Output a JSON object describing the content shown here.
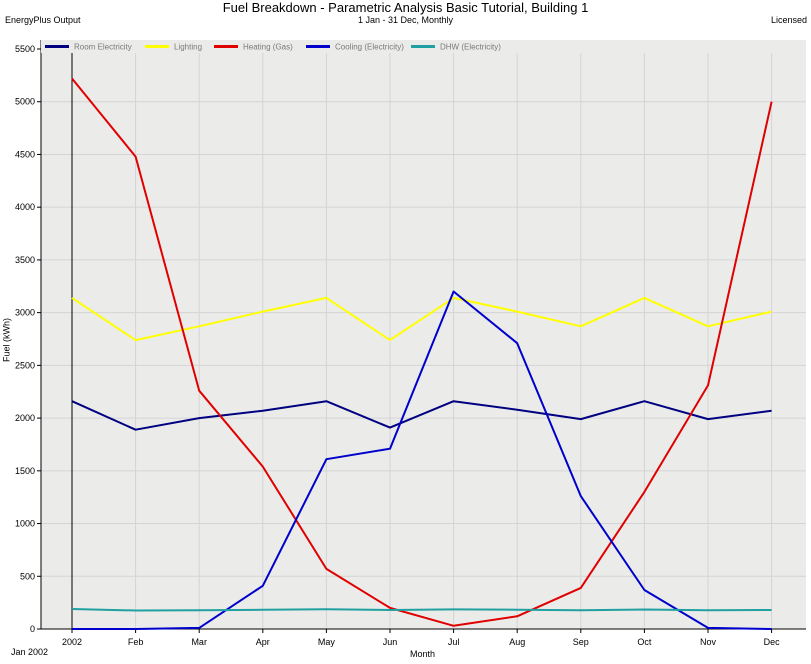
{
  "header": {
    "title": "Fuel Breakdown - Parametric Analysis Basic Tutorial, Building 1",
    "subtitle": "1 Jan - 31 Dec, Monthly",
    "left_label": "EnergyPlus Output",
    "right_label": "Licensed"
  },
  "footer": {
    "start_label": "Jan  2002"
  },
  "chart_data": {
    "type": "line",
    "title": "Fuel Breakdown - Parametric Analysis Basic Tutorial, Building 1",
    "subtitle": "1 Jan - 31 Dec, Monthly",
    "xlabel": "Month",
    "ylabel": "Fuel (kWh)",
    "categories": [
      "2002",
      "Feb",
      "Mar",
      "Apr",
      "May",
      "Jun",
      "Jul",
      "Aug",
      "Sep",
      "Oct",
      "Nov",
      "Dec"
    ],
    "ylim": [
      0,
      5500
    ],
    "yticks": [
      0,
      500,
      1000,
      1500,
      2000,
      2500,
      3000,
      3500,
      4000,
      4500,
      5000,
      5500
    ],
    "grid": true,
    "legend_placement": "top",
    "series": [
      {
        "name": "Room Electricity",
        "color": "#000080",
        "values": [
          2160,
          1890,
          2000,
          2070,
          2160,
          1910,
          2160,
          2080,
          1990,
          2160,
          1990,
          2070
        ]
      },
      {
        "name": "Lighting",
        "color": "#ffff00",
        "values": [
          3140,
          2740,
          2870,
          3010,
          3140,
          2740,
          3140,
          3010,
          2870,
          3140,
          2870,
          3010
        ]
      },
      {
        "name": "Heating (Gas)",
        "color": "#e00000",
        "values": [
          5220,
          4480,
          2260,
          1540,
          570,
          200,
          30,
          120,
          390,
          1300,
          2310,
          5000
        ]
      },
      {
        "name": "Cooling (Electricity)",
        "color": "#0000cc",
        "values": [
          0,
          0,
          10,
          410,
          1610,
          1710,
          3200,
          2710,
          1260,
          370,
          10,
          0
        ]
      },
      {
        "name": "DHW (Electricity)",
        "color": "#20a0a0",
        "values": [
          190,
          175,
          178,
          182,
          188,
          180,
          186,
          183,
          178,
          185,
          177,
          180
        ]
      }
    ]
  }
}
